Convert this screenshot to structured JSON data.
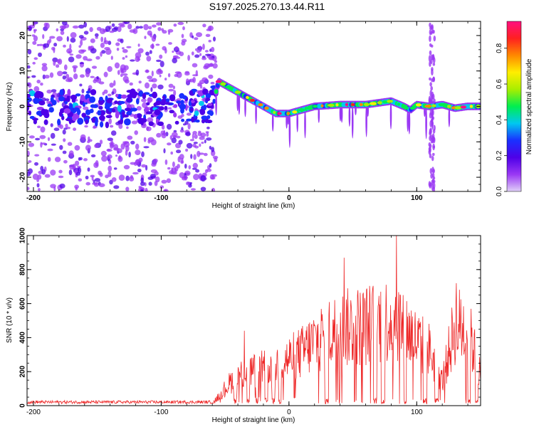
{
  "title": "S197.2025.270.13.44.R11",
  "chart_data": [
    {
      "type": "heatmap",
      "xlabel": "Height of straight line (km)",
      "ylabel": "Frequency (Hz)",
      "xlim": [
        -205,
        150
      ],
      "ylim": [
        -24,
        24
      ],
      "x_ticks": [
        -200,
        -100,
        0,
        100
      ],
      "y_ticks": [
        -20,
        -10,
        0,
        10,
        20
      ],
      "colorbar": {
        "label": "Normalized spectral amplitude",
        "ticks": [
          0.0,
          0.2,
          0.4,
          0.6,
          0.8
        ],
        "range": [
          0,
          0.95
        ],
        "colormap": [
          "#e0d0f8",
          "#9a38f4",
          "#4e00e8",
          "#1a30ff",
          "#00c8f0",
          "#00ee50",
          "#a8ee00",
          "#ffee00",
          "#ff8800",
          "#ff2020",
          "#ff1080"
        ]
      },
      "ridge": {
        "x": [
          -205,
          -180,
          -160,
          -140,
          -120,
          -100,
          -80,
          -60,
          -55,
          -45,
          -30,
          -20,
          -15,
          -10,
          -5,
          0,
          10,
          20,
          40,
          60,
          80,
          90,
          95,
          100,
          110,
          120,
          130,
          140,
          150
        ],
        "y": [
          0,
          0,
          0,
          -1,
          0,
          -1,
          0,
          0,
          7,
          5,
          2,
          0,
          -1,
          -2,
          -2,
          -2,
          -1,
          0,
          0.5,
          0.5,
          1.5,
          0,
          -1,
          0.5,
          0,
          0.5,
          -0.5,
          0,
          0
        ]
      }
    },
    {
      "type": "line",
      "xlabel": "Height of straight line (km)",
      "ylabel": "SNR (10 * v/v)",
      "xlim": [
        -205,
        150
      ],
      "ylim": [
        0,
        1000
      ],
      "x_ticks": [
        -200,
        -100,
        0,
        100
      ],
      "y_ticks": [
        0,
        200,
        400,
        600,
        800,
        1000
      ],
      "color": "#ee2828",
      "envelope": {
        "x": [
          -205,
          -60,
          -45,
          -40,
          -30,
          -20,
          -10,
          0,
          10,
          20,
          30,
          40,
          50,
          60,
          70,
          80,
          85,
          90,
          100,
          110,
          120,
          130,
          140,
          150
        ],
        "y": [
          20,
          20,
          200,
          250,
          280,
          300,
          330,
          380,
          430,
          520,
          580,
          620,
          640,
          650,
          680,
          700,
          720,
          640,
          520,
          450,
          200,
          650,
          620,
          250
        ]
      },
      "dropouts": [
        [
          -43,
          -41
        ],
        [
          -33,
          -31
        ],
        [
          -26,
          -24
        ],
        [
          -19,
          -17
        ],
        [
          -13,
          -11
        ],
        [
          -8,
          -6
        ],
        [
          28,
          31
        ],
        [
          66,
          69
        ],
        [
          72,
          75
        ],
        [
          90,
          92
        ],
        [
          105,
          108
        ],
        [
          114,
          117
        ],
        [
          140,
          142
        ],
        [
          146,
          148
        ]
      ],
      "peaks": [
        {
          "x": -35,
          "y": 440
        },
        {
          "x": 43,
          "y": 870
        },
        {
          "x": 84,
          "y": 1000
        },
        {
          "x": 131,
          "y": 720
        }
      ]
    }
  ]
}
